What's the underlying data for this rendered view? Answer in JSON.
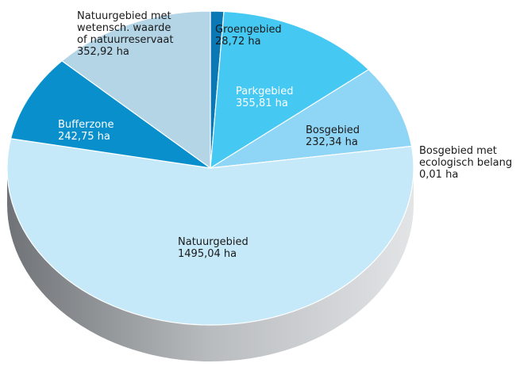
{
  "chart_data": {
    "type": "pie",
    "categories": [
      "Groengebied",
      "Parkgebied",
      "Bosgebied",
      "Bosgebied met\necologisch belang",
      "Natuurgebied",
      "Bufferzone",
      "Natuurgebied met\nwetensch. waarde\nof natuurreservaat"
    ],
    "values": [
      28.72,
      355.81,
      232.34,
      0.01,
      1495.04,
      242.75,
      352.92
    ],
    "value_labels": [
      "28,72 ha",
      "355,81 ha",
      "232,34 ha",
      "0,01 ha",
      "1495,04 ha",
      "242,75 ha",
      "352,92 ha"
    ],
    "colors": [
      "#0a78b4",
      "#45c8f2",
      "#8fd5f5",
      "#8fd5f5",
      "#c6e9f9",
      "#0990cc",
      "#b4d5e6"
    ]
  }
}
